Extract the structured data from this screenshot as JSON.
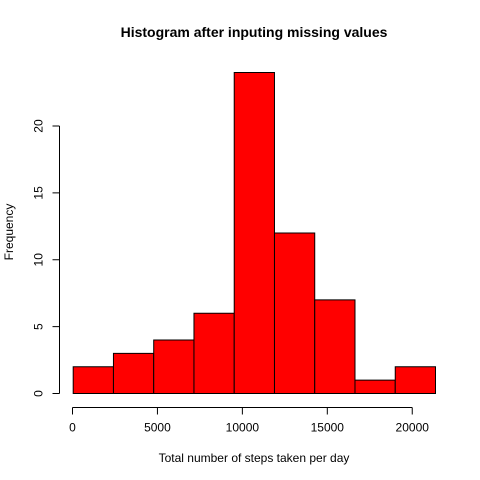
{
  "chart_data": {
    "type": "bar",
    "title": "Histogram after inputing missing values",
    "xlabel": "Total number of steps taken per day",
    "ylabel": "Frequency",
    "bin_edges": [
      41,
      2410.8,
      4780.6,
      7150.4,
      9520.2,
      11890,
      14259.8,
      16629.6,
      18999.4,
      21369.2
    ],
    "values": [
      2,
      3,
      4,
      6,
      24,
      12,
      7,
      1,
      2
    ],
    "bar_color": "#ff0000",
    "bar_border_color": "#000000",
    "xlim": [
      0,
      21369.2
    ],
    "ylim": [
      0,
      24
    ],
    "x_ticks": [
      0,
      5000,
      10000,
      15000,
      20000
    ],
    "x_tick_labels": [
      "0",
      "5000",
      "10000",
      "15000",
      "20000"
    ],
    "y_ticks": [
      0,
      5,
      10,
      15,
      20
    ],
    "y_tick_labels": [
      "0",
      "5",
      "10",
      "15",
      "20"
    ],
    "grid": false,
    "legend": "none"
  }
}
